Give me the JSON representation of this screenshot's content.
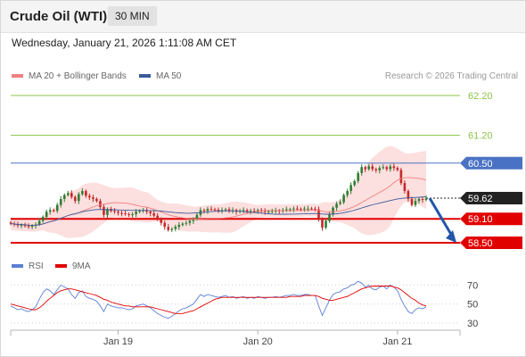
{
  "header": {
    "title": "Crude Oil (WTI)",
    "timeframe": "30 MIN"
  },
  "datetime": "Wednesday, January 21, 2026 1:11:08 AM CET",
  "legend": {
    "ma20_label": "MA 20 + Bollinger Bands",
    "ma50_label": "MA 50"
  },
  "credit": "Research © 2026 Trading Central",
  "colors": {
    "bull": "#2f7d32",
    "bear": "#c62828",
    "ma20": "#f08080",
    "ma50": "#3a5a9a",
    "bands": "#fbd9d9",
    "green_level": "#8bc34a",
    "blue_level": "#4a72c4",
    "red_level": "#e10000",
    "current": "#222222",
    "arrow": "#2456a8",
    "rsi": "#5b7fd6",
    "rsi_ma": "#e10000"
  },
  "chart_data": [
    {
      "type": "candlestick",
      "title": "Crude Oil (WTI)",
      "timeframe": "30 MIN",
      "ylim": [
        58.4,
        62.35
      ],
      "x_ticks": [
        {
          "index": 30,
          "label": "Jan 19"
        },
        {
          "index": 69,
          "label": "Jan 20"
        },
        {
          "index": 108,
          "label": "Jan 21"
        }
      ],
      "levels": [
        {
          "value": 62.2,
          "label": "62.20",
          "kind": "resistance-green"
        },
        {
          "value": 61.2,
          "label": "61.20",
          "kind": "resistance-green"
        },
        {
          "value": 60.5,
          "label": "60.50",
          "kind": "resistance-blue"
        },
        {
          "value": 59.62,
          "label": "59.62",
          "kind": "current"
        },
        {
          "value": 59.1,
          "label": "59.10",
          "kind": "support-red"
        },
        {
          "value": 58.5,
          "label": "58.50",
          "kind": "support-red"
        }
      ],
      "forecast": {
        "from": 59.62,
        "to": 58.5,
        "direction": "down"
      },
      "closes": [
        58.98,
        58.96,
        58.94,
        58.95,
        58.92,
        58.9,
        58.93,
        58.96,
        59.05,
        59.15,
        59.28,
        59.32,
        59.3,
        59.45,
        59.6,
        59.7,
        59.75,
        59.65,
        59.55,
        59.72,
        59.8,
        59.68,
        59.64,
        59.6,
        59.55,
        59.4,
        59.2,
        59.35,
        59.3,
        59.28,
        59.25,
        59.24,
        59.22,
        59.2,
        59.22,
        59.28,
        59.3,
        59.32,
        59.28,
        59.24,
        59.18,
        59.1,
        59.0,
        58.9,
        58.82,
        58.85,
        58.9,
        58.95,
        58.98,
        59.0,
        59.05,
        59.1,
        59.2,
        59.32,
        59.3,
        59.35,
        59.34,
        59.33,
        59.31,
        59.32,
        59.34,
        59.3,
        59.32,
        59.28,
        59.3,
        59.32,
        59.29,
        59.3,
        59.28,
        59.32,
        59.3,
        59.28,
        59.29,
        59.3,
        59.31,
        59.29,
        59.32,
        59.34,
        59.34,
        59.36,
        59.35,
        59.34,
        59.36,
        59.36,
        59.35,
        59.34,
        59.1,
        58.88,
        59.05,
        59.22,
        59.38,
        59.48,
        59.52,
        59.7,
        59.8,
        59.95,
        60.05,
        60.25,
        60.4,
        60.35,
        60.42,
        60.35,
        60.32,
        60.38,
        60.4,
        60.35,
        60.42,
        60.38,
        60.33,
        60.0,
        59.8,
        59.6,
        59.45,
        59.55,
        59.6,
        59.58,
        59.62
      ],
      "series": [
        {
          "name": "MA 20 + Bollinger Bands"
        },
        {
          "name": "MA 50"
        }
      ]
    },
    {
      "type": "line",
      "ylim": [
        28,
        77
      ],
      "y_ticks": [
        70,
        50,
        30
      ],
      "legend": [
        "RSI",
        "9MA"
      ],
      "rsi": [
        48,
        46,
        44,
        45,
        43,
        42,
        44,
        47,
        55,
        62,
        66,
        64,
        60,
        65,
        70,
        68,
        66,
        60,
        56,
        62,
        64,
        58,
        56,
        55,
        53,
        48,
        42,
        50,
        48,
        47,
        46,
        46,
        45,
        44,
        45,
        48,
        49,
        50,
        48,
        46,
        43,
        40,
        38,
        36,
        35,
        37,
        40,
        43,
        45,
        46,
        48,
        50,
        55,
        60,
        58,
        60,
        59,
        58,
        57,
        58,
        59,
        57,
        58,
        56,
        57,
        58,
        56,
        57,
        56,
        58,
        57,
        56,
        57,
        57,
        58,
        57,
        58,
        59,
        59,
        60,
        59,
        59,
        60,
        60,
        59,
        59,
        48,
        38,
        46,
        54,
        60,
        62,
        63,
        66,
        67,
        70,
        71,
        74,
        72,
        68,
        70,
        66,
        65,
        68,
        69,
        66,
        70,
        68,
        64,
        55,
        48,
        42,
        40,
        44,
        46,
        45,
        47
      ],
      "rsi_ma": [
        50,
        49,
        48,
        47,
        46,
        45,
        44,
        44,
        46,
        49,
        53,
        56,
        59,
        62,
        64,
        65,
        66,
        66,
        65,
        64,
        63,
        62,
        61,
        60,
        59,
        57,
        55,
        54,
        52,
        51,
        50,
        49,
        48,
        48,
        47,
        47,
        47,
        47,
        47,
        47,
        46,
        45,
        44,
        43,
        42,
        41,
        40,
        40,
        40,
        41,
        42,
        43,
        45,
        47,
        49,
        51,
        53,
        55,
        56,
        57,
        57,
        57,
        57,
        57,
        57,
        57,
        57,
        57,
        57,
        57,
        57,
        57,
        57,
        57,
        57,
        57,
        57,
        57,
        58,
        58,
        58,
        58,
        59,
        59,
        59,
        59,
        58,
        56,
        55,
        54,
        54,
        55,
        56,
        57,
        58,
        60,
        62,
        64,
        66,
        67,
        68,
        69,
        69,
        69,
        69,
        69,
        69,
        68,
        67,
        65,
        62,
        59,
        56,
        54,
        51,
        49,
        48
      ]
    }
  ]
}
